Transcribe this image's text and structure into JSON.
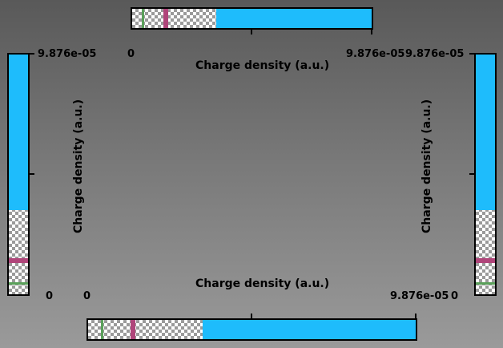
{
  "colors": {
    "fill": "#1ebcfc",
    "green_marker": "#5aa05a",
    "magenta_marker": "#b0457a"
  },
  "colorbars": [
    {
      "id": "top",
      "orientation": "horizontal",
      "min_label": "0",
      "max_label": "9.876e-05",
      "title": "Charge density (a.u.)",
      "fill_start_fraction": 0.35,
      "green_marker_fraction": 0.04,
      "magenta_marker_fraction": 0.13
    },
    {
      "id": "bottom",
      "orientation": "horizontal",
      "min_label": "0",
      "max_label": "9.876e-05",
      "title": "Charge density (a.u.)",
      "fill_start_fraction": 0.35,
      "green_marker_fraction": 0.04,
      "magenta_marker_fraction": 0.13
    },
    {
      "id": "left",
      "orientation": "vertical",
      "min_label": "0",
      "max_label": "9.876e-05",
      "title": "Charge density (a.u.)",
      "fill_start_fraction": 0.35,
      "green_marker_fraction": 0.04,
      "magenta_marker_fraction": 0.13
    },
    {
      "id": "right",
      "orientation": "vertical",
      "min_label": "0",
      "max_label": "9.876e-05",
      "title": "Charge density (a.u.)",
      "fill_start_fraction": 0.35,
      "green_marker_fraction": 0.04,
      "magenta_marker_fraction": 0.13
    }
  ]
}
